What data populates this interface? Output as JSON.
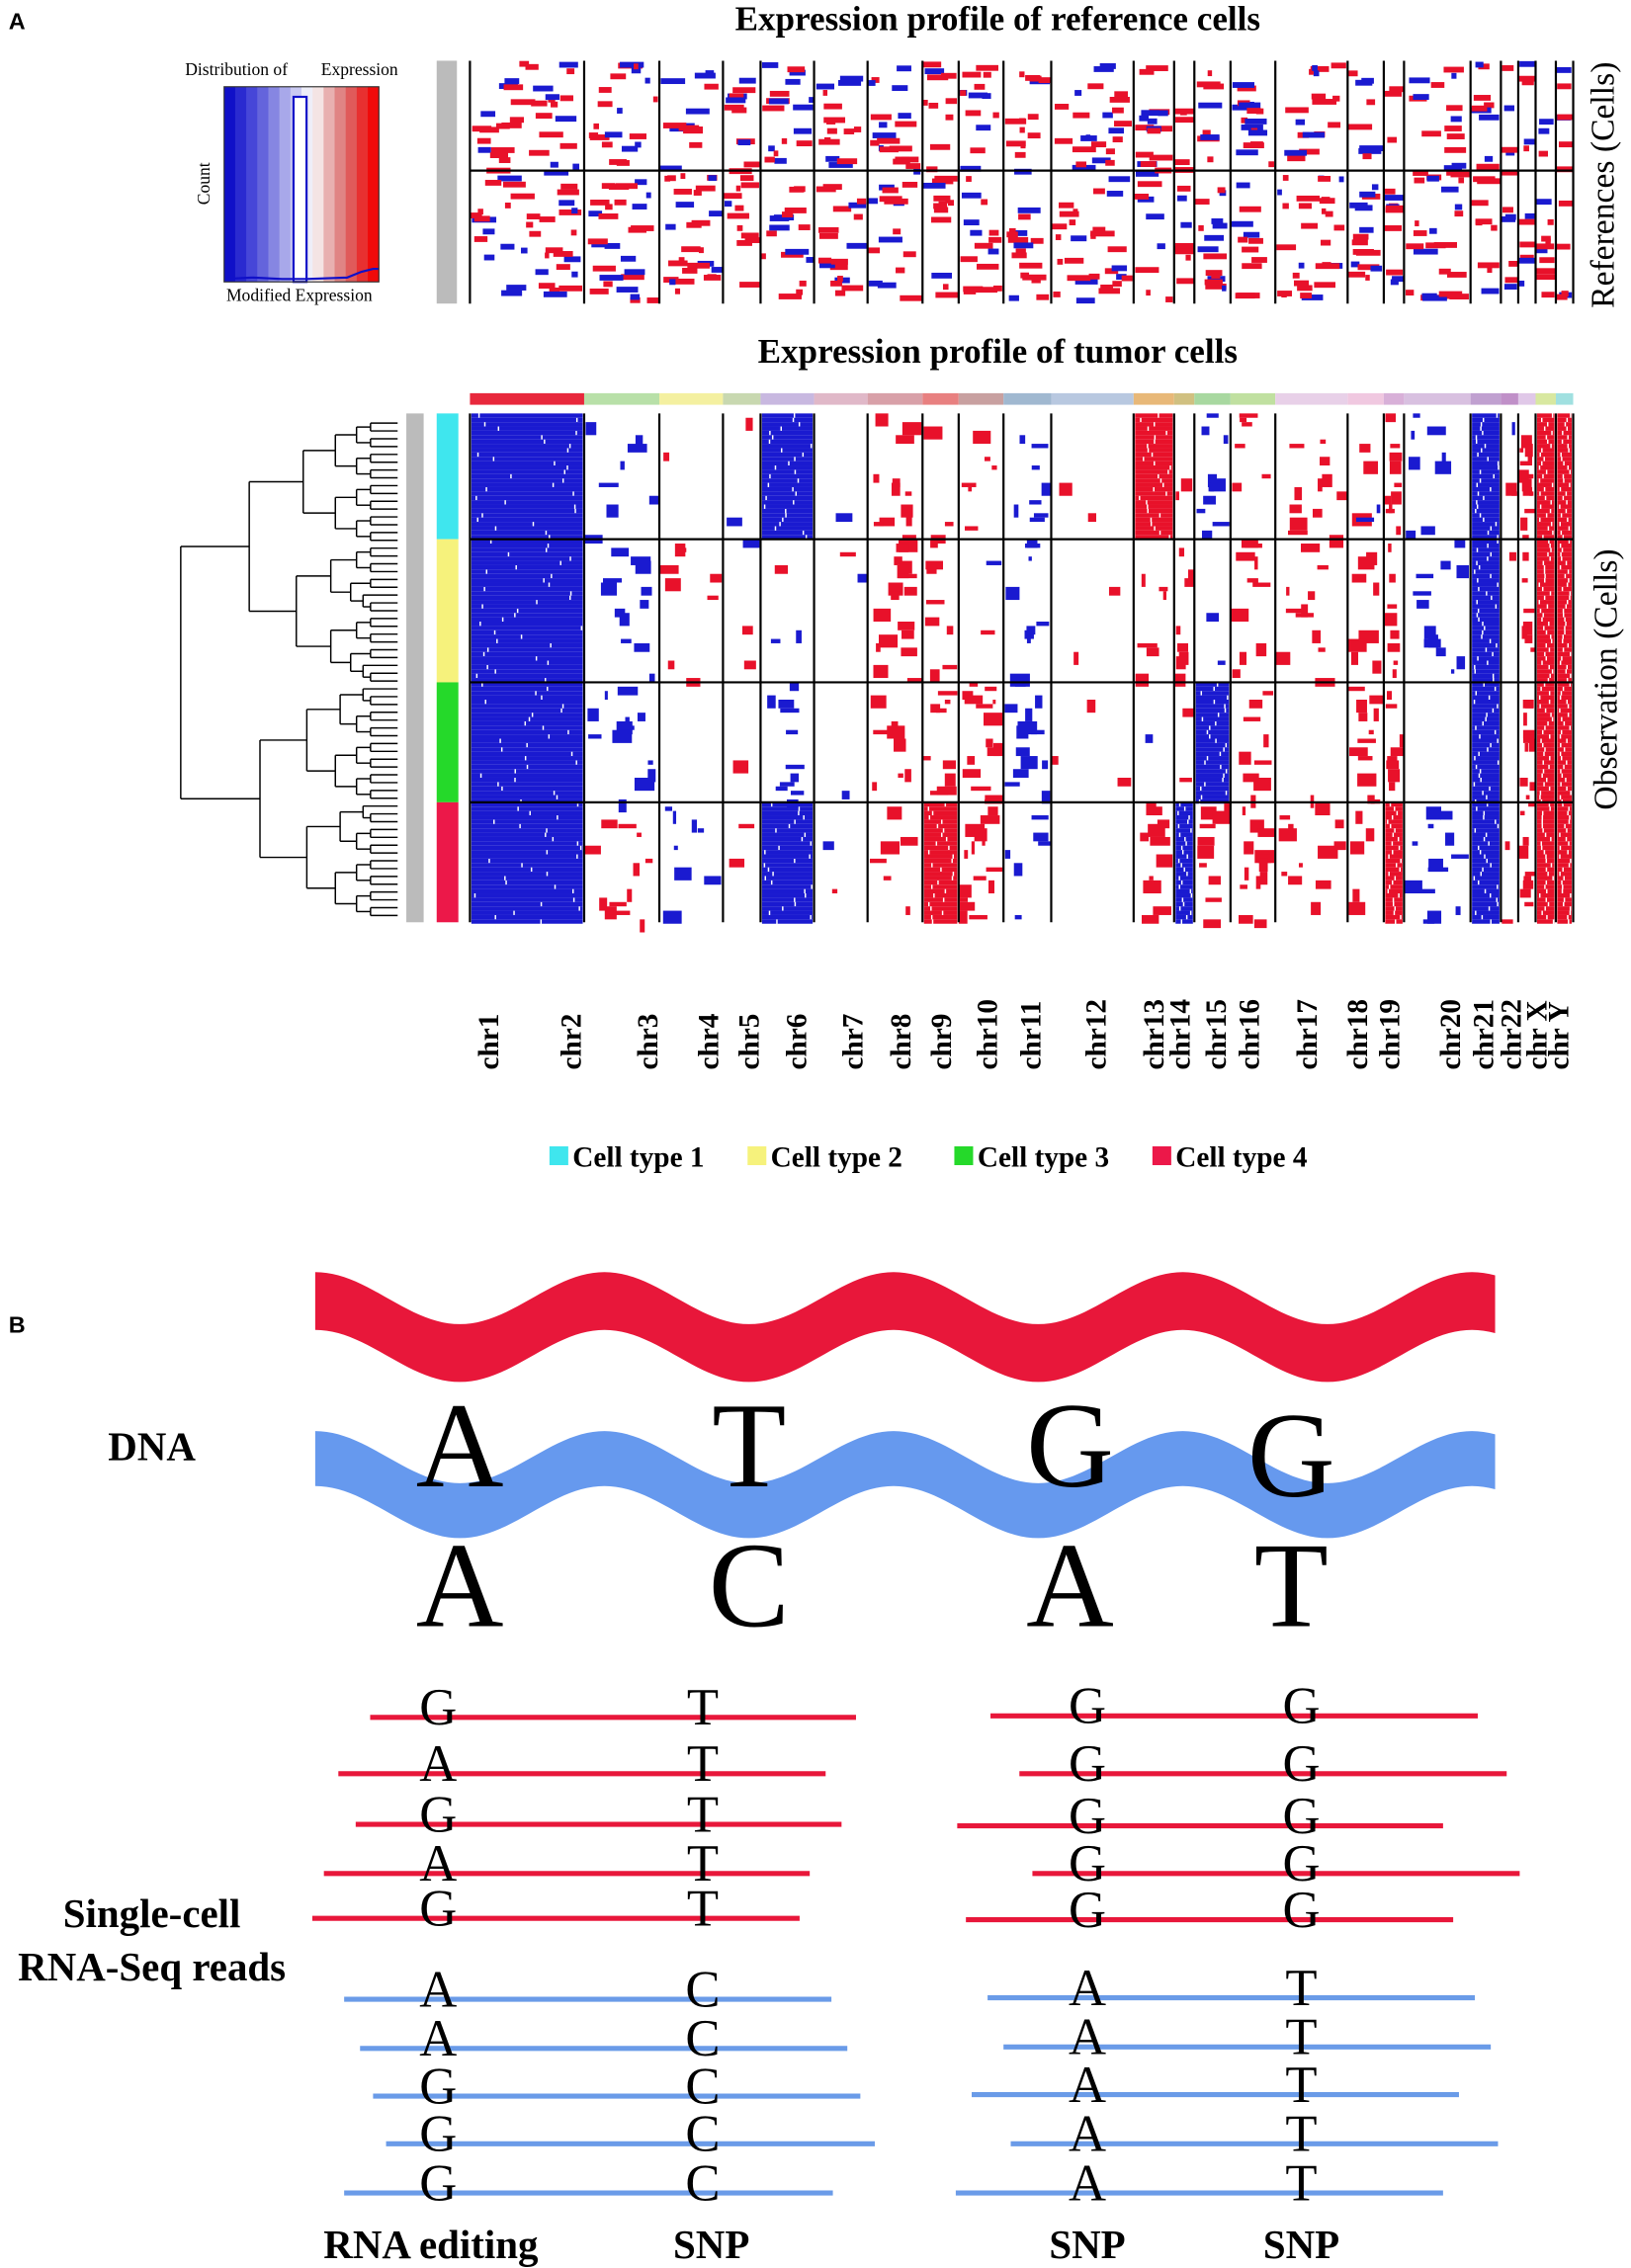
{
  "panel_a": {
    "label": "A",
    "reference_title": "Expression profile of reference cells",
    "tumor_title": "Expression profile of tumor cells",
    "key": {
      "title_left": "Distribution of",
      "title_right": "Expression",
      "y_label": "Count",
      "x_label": "Modified Expression"
    },
    "reference_axis_label": "References (Cells)",
    "observation_axis_label": "Observation (Cells)",
    "chromosomes": [
      "chr1",
      "chr2",
      "chr3",
      "chr4",
      "chr5",
      "chr6",
      "chr7",
      "chr8",
      "chr9",
      "chr10",
      "chr11",
      "chr12",
      "chr13",
      "chr14",
      "chr15",
      "chr16",
      "chr17",
      "chr18",
      "chr19",
      "chr20",
      "chr21",
      "chr22",
      "chr X",
      "chr Y"
    ],
    "legend": [
      {
        "name": "Cell type 1",
        "color": "#3fe6ee"
      },
      {
        "name": "Cell type 2",
        "color": "#f6f27c"
      },
      {
        "name": "Cell type 3",
        "color": "#25d92a"
      },
      {
        "name": "Cell type 4",
        "color": "#ec1849"
      }
    ]
  },
  "panel_b": {
    "label": "B",
    "dna_label": "DNA",
    "top_strand": [
      "A",
      "T",
      "G",
      "G"
    ],
    "bottom_strand": [
      "A",
      "C",
      "A",
      "T"
    ],
    "reads_label": [
      "Single-cell",
      "RNA-Seq reads"
    ],
    "reads": {
      "left": {
        "red": [
          [
            "G",
            "T"
          ],
          [
            "A",
            "T"
          ],
          [
            "G",
            "T"
          ],
          [
            "A",
            "T"
          ],
          [
            "G",
            "T"
          ]
        ],
        "blue": [
          [
            "A",
            "C"
          ],
          [
            "A",
            "C"
          ],
          [
            "G",
            "C"
          ],
          [
            "G",
            "C"
          ],
          [
            "G",
            "C"
          ]
        ]
      },
      "right": {
        "red": [
          [
            "G",
            "G"
          ],
          [
            "G",
            "G"
          ],
          [
            "G",
            "G"
          ],
          [
            "G",
            "G"
          ],
          [
            "G",
            "G"
          ]
        ],
        "blue": [
          [
            "A",
            "T"
          ],
          [
            "A",
            "T"
          ],
          [
            "A",
            "T"
          ],
          [
            "A",
            "T"
          ],
          [
            "A",
            "T"
          ]
        ]
      }
    },
    "column_labels": [
      "RNA editing",
      "SNP",
      "SNP",
      "SNP"
    ]
  }
}
